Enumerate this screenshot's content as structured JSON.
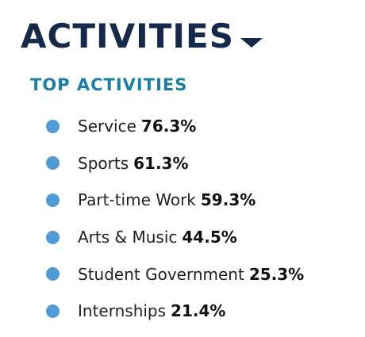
{
  "header": {
    "title": "ACTIVITIES",
    "toggle_icon": "caret-down-icon",
    "color": "#152a4b"
  },
  "section": {
    "title": "TOP ACTIVITIES",
    "color": "#1a7fa8",
    "bullet_color": "#4f9bd6"
  },
  "activities": [
    {
      "name": "Service",
      "percent": "76.3%"
    },
    {
      "name": "Sports",
      "percent": "61.3%"
    },
    {
      "name": "Part-time Work",
      "percent": "59.3%"
    },
    {
      "name": "Arts & Music",
      "percent": "44.5%"
    },
    {
      "name": "Student Government",
      "percent": "25.3%"
    },
    {
      "name": "Internships",
      "percent": "21.4%"
    }
  ]
}
